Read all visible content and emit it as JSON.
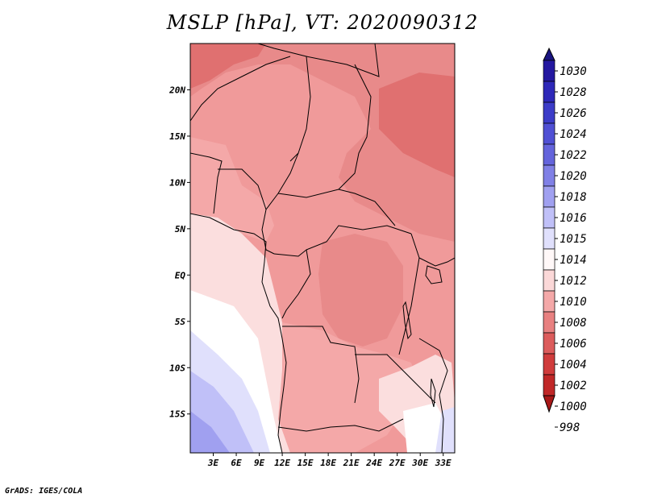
{
  "title": "MSLP [hPa], VT: 2020090312",
  "credit": "GrADS: IGES/COLA",
  "x_axis_labels": [
    "3E",
    "6E",
    "9E",
    "12E",
    "15E",
    "18E",
    "21E",
    "24E",
    "27E",
    "30E",
    "33E"
  ],
  "y_axis_labels": [
    "20N",
    "15N",
    "10N",
    "5N",
    "EQ",
    "5S",
    "10S",
    "15S"
  ],
  "x_axis_degrees": [
    3,
    6,
    9,
    12,
    15,
    18,
    21,
    24,
    27,
    30,
    33
  ],
  "y_axis_degrees": [
    20,
    15,
    10,
    5,
    0,
    -5,
    -10,
    -15
  ],
  "colorbar": {
    "levels": [
      "1030",
      "1028",
      "1026",
      "1024",
      "1022",
      "1020",
      "1018",
      "1016",
      "1015",
      "1014",
      "1012",
      "1010",
      "1008",
      "1006",
      "1004",
      "1002",
      "1000",
      "998"
    ],
    "colors": [
      "#1a1480",
      "#2418a0",
      "#2e28b8",
      "#3c3cc8",
      "#5050d4",
      "#6464dc",
      "#8080e6",
      "#a0a0f0",
      "#c0c0f8",
      "#e0e0fc",
      "#fff8f8",
      "#fbd8d8",
      "#f4a8a8",
      "#e88080",
      "#dc5c5c",
      "#d03c3c",
      "#c02828",
      "#a81818"
    ]
  },
  "field_colors": {
    "p1016": "#a0a0f0",
    "p1015": "#c0c0f8",
    "p1014": "#e0e0fc",
    "p1013": "#ffffff",
    "p1012": "#fbdede",
    "p1010": "#f4a8a8",
    "p1009": "#f09a9a",
    "p1008": "#e88a8a",
    "p1006": "#e07070"
  }
}
